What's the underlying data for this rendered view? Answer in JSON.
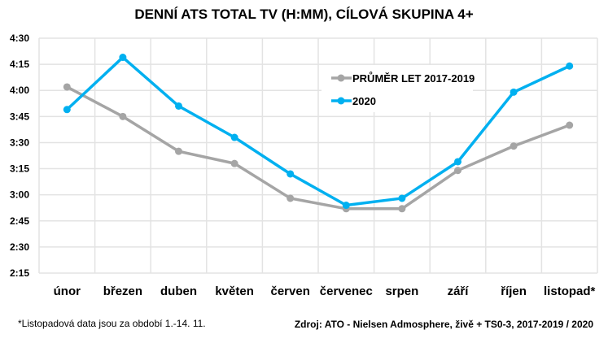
{
  "chart_data": {
    "type": "line",
    "title": "DENNÍ ATS TOTAL TV (H:MM), CÍLOVÁ SKUPINA 4+",
    "xlabel": "",
    "ylabel": "",
    "categories": [
      "únor",
      "březen",
      "duben",
      "květen",
      "červen",
      "červenec",
      "srpen",
      "září",
      "říjen",
      "listopad*"
    ],
    "y_unit": "minutes",
    "ylim": [
      135,
      270
    ],
    "yticks": [
      {
        "value": 135,
        "label": "2:15"
      },
      {
        "value": 150,
        "label": "2:30"
      },
      {
        "value": 165,
        "label": "2:45"
      },
      {
        "value": 180,
        "label": "3:00"
      },
      {
        "value": 195,
        "label": "3:15"
      },
      {
        "value": 210,
        "label": "3:30"
      },
      {
        "value": 225,
        "label": "3:45"
      },
      {
        "value": 240,
        "label": "4:00"
      },
      {
        "value": 255,
        "label": "4:15"
      },
      {
        "value": 270,
        "label": "4:30"
      }
    ],
    "grid": true,
    "legend_position": "top-right",
    "series": [
      {
        "name": "PRŮMĚR LET 2017-2019",
        "color": "#a5a5a5",
        "values": [
          242,
          225,
          205,
          198,
          178,
          172,
          172,
          194,
          208,
          220
        ]
      },
      {
        "name": "2020",
        "color": "#00b0f0",
        "values": [
          229,
          259,
          231,
          213,
          192,
          174,
          178,
          199,
          239,
          254
        ]
      }
    ]
  },
  "footnote": "*Listopadová data jsou za období 1.-14. 11.",
  "source": "Zdroj: ATO - Nielsen Admosphere, živě + TS0-3, 2017-2019 / 2020"
}
